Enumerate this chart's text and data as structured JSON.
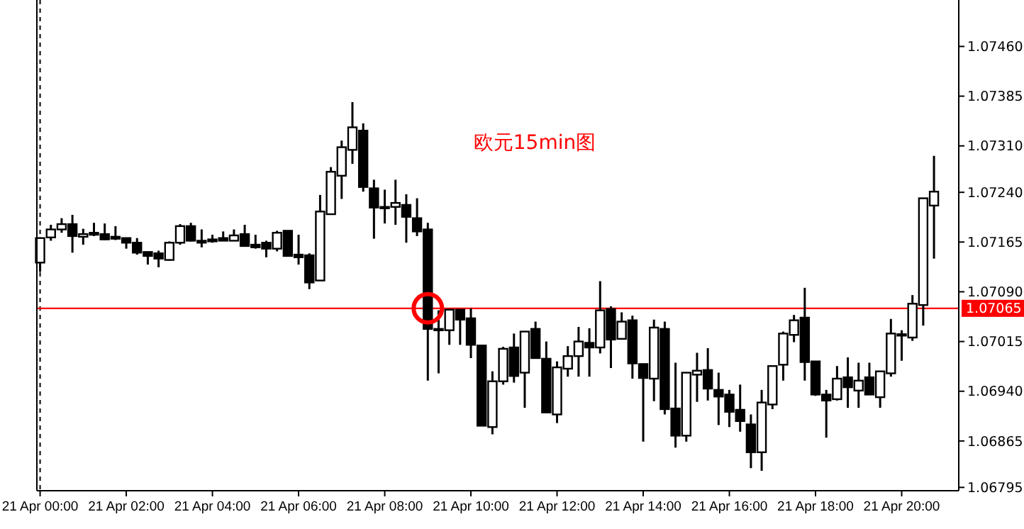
{
  "chart_data": {
    "type": "candlestick",
    "title": "欧元15min图",
    "color": "#000000",
    "categories": [
      "21 Apr 00:00",
      null,
      null,
      null,
      null,
      null,
      null,
      null,
      "21 Apr 02:00",
      null,
      null,
      null,
      null,
      null,
      null,
      null,
      "21 Apr 04:00",
      null,
      null,
      null,
      null,
      null,
      null,
      null,
      "21 Apr 06:00",
      null,
      null,
      null,
      null,
      null,
      null,
      null,
      "21 Apr 08:00",
      null,
      null,
      null,
      null,
      null,
      null,
      null,
      "21 Apr 10:00",
      null,
      null,
      null,
      null,
      null,
      null,
      null,
      "21 Apr 12:00",
      null,
      null,
      null,
      null,
      null,
      null,
      null,
      "21 Apr 14:00",
      null,
      null,
      null,
      null,
      null,
      null,
      null,
      "21 Apr 16:00",
      null,
      null,
      null,
      null,
      null,
      null,
      null,
      "21 Apr 18:00",
      null,
      null,
      null,
      null,
      null,
      null,
      null,
      "21 Apr 20:00",
      null,
      null,
      null
    ],
    "ohlc": [
      [
        1.07134,
        1.07172,
        1.0712,
        1.07171
      ],
      [
        1.07172,
        1.07191,
        1.07167,
        1.07184
      ],
      [
        1.07184,
        1.07201,
        1.07179,
        1.07192
      ],
      [
        1.07192,
        1.07206,
        1.07149,
        1.07174
      ],
      [
        1.07173,
        1.07185,
        1.07161,
        1.07177
      ],
      [
        1.07179,
        1.07194,
        1.07174,
        1.07176
      ],
      [
        1.07177,
        1.07193,
        1.07168,
        1.07169
      ],
      [
        1.07173,
        1.07189,
        1.07168,
        1.0717
      ],
      [
        1.07171,
        1.07171,
        1.07155,
        1.07164
      ],
      [
        1.07164,
        1.07171,
        1.07146,
        1.07149
      ],
      [
        1.0715,
        1.0715,
        1.07131,
        1.07144
      ],
      [
        1.07148,
        1.07152,
        1.07127,
        1.0714
      ],
      [
        1.07138,
        1.07166,
        1.07137,
        1.07164
      ],
      [
        1.07164,
        1.07192,
        1.07161,
        1.07189
      ],
      [
        1.07189,
        1.07194,
        1.07166,
        1.07167
      ],
      [
        1.07167,
        1.07184,
        1.07157,
        1.07164
      ],
      [
        1.07169,
        1.07176,
        1.07164,
        1.07166
      ],
      [
        1.07171,
        1.07181,
        1.07167,
        1.07167
      ],
      [
        1.07167,
        1.07184,
        1.07167,
        1.07175
      ],
      [
        1.07177,
        1.07191,
        1.07158,
        1.07159
      ],
      [
        1.07161,
        1.07176,
        1.07155,
        1.07157
      ],
      [
        1.07164,
        1.07167,
        1.07142,
        1.07155
      ],
      [
        1.07155,
        1.07182,
        1.07151,
        1.07179
      ],
      [
        1.07182,
        1.07182,
        1.07144,
        1.07144
      ],
      [
        1.07146,
        1.07176,
        1.07131,
        1.07142
      ],
      [
        1.07145,
        1.07148,
        1.07094,
        1.07104
      ],
      [
        1.07107,
        1.07236,
        1.07107,
        1.07211
      ],
      [
        1.07207,
        1.07278,
        1.07207,
        1.07271
      ],
      [
        1.07265,
        1.07318,
        1.0723,
        1.07308
      ],
      [
        1.07304,
        1.07376,
        1.07283,
        1.07338
      ],
      [
        1.07333,
        1.07344,
        1.07241,
        1.07248
      ],
      [
        1.07246,
        1.07259,
        1.0717,
        1.07217
      ],
      [
        1.07218,
        1.07244,
        1.07193,
        1.07218
      ],
      [
        1.07218,
        1.07259,
        1.07191,
        1.07224
      ],
      [
        1.07221,
        1.07237,
        1.07164,
        1.07203
      ],
      [
        1.07201,
        1.07231,
        1.07174,
        1.07181
      ],
      [
        1.07184,
        1.07194,
        1.06956,
        1.07034
      ],
      [
        1.07034,
        1.07062,
        1.06967,
        1.07032
      ],
      [
        1.07032,
        1.07063,
        1.0701,
        1.07063
      ],
      [
        1.07063,
        1.07063,
        1.0701,
        1.07048
      ],
      [
        1.0705,
        1.07065,
        1.0699,
        1.0701
      ],
      [
        1.07009,
        1.07009,
        1.06888,
        1.06888
      ],
      [
        1.06886,
        1.0697,
        1.06875,
        1.06955
      ],
      [
        1.06955,
        1.07007,
        1.0695,
        1.07004
      ],
      [
        1.07006,
        1.07027,
        1.06953,
        1.06963
      ],
      [
        1.06968,
        1.0703,
        1.06915,
        1.0703
      ],
      [
        1.07034,
        1.07045,
        1.0699,
        1.0699
      ],
      [
        1.06989,
        1.07015,
        1.06908,
        1.06908
      ],
      [
        1.06905,
        1.06985,
        1.06892,
        1.06976
      ],
      [
        1.06974,
        1.07008,
        1.06962,
        1.06993
      ],
      [
        1.06993,
        1.07037,
        1.06962,
        1.07015
      ],
      [
        1.07013,
        1.07035,
        1.06962,
        1.07006
      ],
      [
        1.07006,
        1.07106,
        1.06997,
        1.07062
      ],
      [
        1.07064,
        1.07068,
        1.06975,
        1.07018
      ],
      [
        1.07019,
        1.07059,
        1.07019,
        1.07045
      ],
      [
        1.07047,
        1.07054,
        1.06959,
        1.06982
      ],
      [
        1.06981,
        1.06981,
        1.06864,
        1.0696
      ],
      [
        1.06959,
        1.07048,
        1.06925,
        1.07036
      ],
      [
        1.07034,
        1.07045,
        1.06905,
        1.06913
      ],
      [
        1.06914,
        1.06983,
        1.06855,
        1.06873
      ],
      [
        1.06873,
        1.06968,
        1.06864,
        1.06968
      ],
      [
        1.06965,
        1.06998,
        1.06924,
        1.06971
      ],
      [
        1.06972,
        1.07005,
        1.06926,
        1.06944
      ],
      [
        1.06942,
        1.06968,
        1.06889,
        1.06932
      ],
      [
        1.06935,
        1.06942,
        1.06886,
        1.06909
      ],
      [
        1.06912,
        1.0695,
        1.06879,
        1.06895
      ],
      [
        1.0689,
        1.06905,
        1.06824,
        1.06848
      ],
      [
        1.06848,
        1.06942,
        1.0682,
        1.06923
      ],
      [
        1.0692,
        1.06978,
        1.06913,
        1.06978
      ],
      [
        1.0698,
        1.0703,
        1.06956,
        1.07027
      ],
      [
        1.07025,
        1.07055,
        1.07014,
        1.07047
      ],
      [
        1.07051,
        1.07096,
        1.06956,
        1.06984
      ],
      [
        1.06985,
        1.06985,
        1.06933,
        1.06935
      ],
      [
        1.06935,
        1.06942,
        1.0687,
        1.06926
      ],
      [
        1.06928,
        1.06978,
        1.06926,
        1.06959
      ],
      [
        1.06961,
        1.06991,
        1.06915,
        1.06946
      ],
      [
        1.06941,
        1.06983,
        1.06915,
        1.06956
      ],
      [
        1.06961,
        1.06983,
        1.06935,
        1.06935
      ],
      [
        1.06931,
        1.0697,
        1.06915,
        1.0697
      ],
      [
        1.06967,
        1.07049,
        1.06962,
        1.07027
      ],
      [
        1.07024,
        1.07032,
        1.06986,
        1.07026
      ],
      [
        1.07021,
        1.07085,
        1.07016,
        1.07072
      ],
      [
        1.0707,
        1.07231,
        1.07039,
        1.07231
      ],
      [
        1.0722,
        1.07295,
        1.0714,
        1.07241
      ]
    ],
    "ylim": [
      1.0679,
      1.0753
    ],
    "yticks": [
      {
        "value": 1.06795,
        "label": "1.06795"
      },
      {
        "value": 1.06865,
        "label": "1.06865"
      },
      {
        "value": 1.0694,
        "label": "1.06940"
      },
      {
        "value": 1.07015,
        "label": "1.07015"
      },
      {
        "value": 1.0709,
        "label": "1.07090"
      },
      {
        "value": 1.07165,
        "label": "1.07165"
      },
      {
        "value": 1.0724,
        "label": "1.07240"
      },
      {
        "value": 1.0731,
        "label": "1.07310"
      },
      {
        "value": 1.07385,
        "label": "1.07385"
      },
      {
        "value": 1.0746,
        "label": "1.07460"
      }
    ],
    "ref_lines": [
      {
        "axis": "y",
        "value": 1.07065,
        "label": "1.07065",
        "color": "#ff0000",
        "line_style": "solid"
      },
      {
        "axis": "x",
        "value": "21 Apr 00:00",
        "label": null,
        "color": "#000000",
        "line_style": "dashed"
      }
    ],
    "grid": false
  }
}
